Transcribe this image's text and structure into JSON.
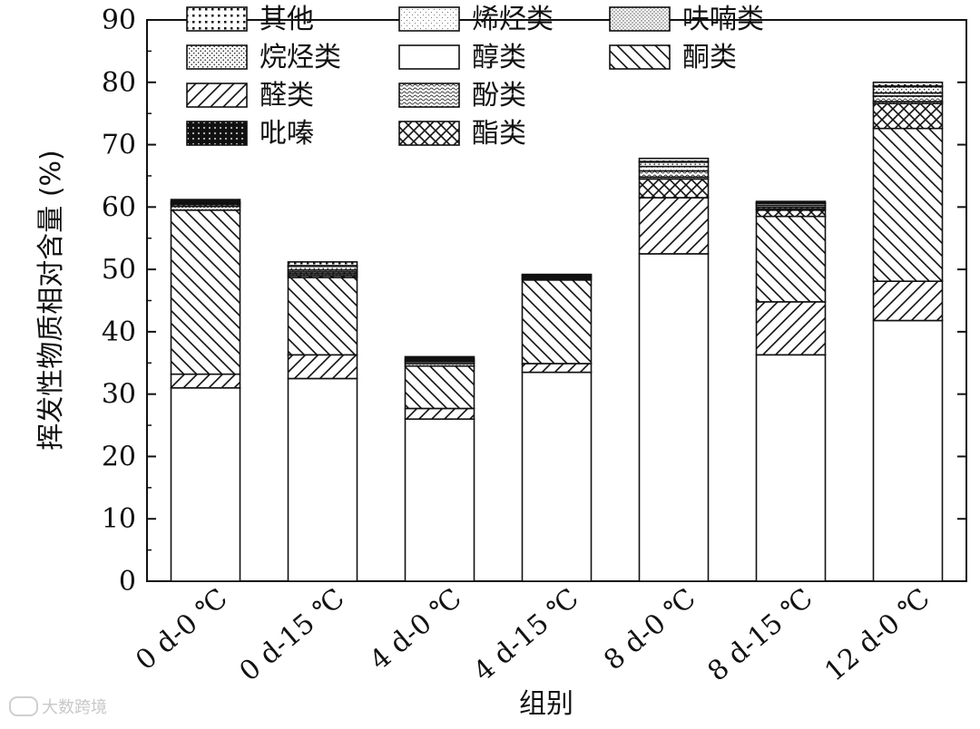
{
  "chart_data": {
    "type": "bar",
    "stacked": true,
    "title": "",
    "xlabel": "组别",
    "ylabel": "挥发性物质相对含量 (%)",
    "ylim": [
      0,
      90
    ],
    "yticks": [
      0,
      10,
      20,
      30,
      40,
      50,
      60,
      70,
      80,
      90
    ],
    "grid": false,
    "legend_position": "top-left",
    "categories": [
      "0 d-0 ℃",
      "0 d-15 ℃",
      "4 d-0 ℃",
      "4 d-15 ℃",
      "8 d-0 ℃",
      "8 d-15 ℃",
      "12 d-0 ℃"
    ],
    "series": [
      {
        "name": "醇类",
        "pattern": "blank",
        "values": [
          31.0,
          32.5,
          26.0,
          33.5,
          52.5,
          36.3,
          41.8
        ]
      },
      {
        "name": "醛类",
        "pattern": "hatch-forward",
        "values": [
          2.2,
          3.8,
          1.7,
          1.4,
          9.0,
          8.5,
          6.3
        ]
      },
      {
        "name": "酮类",
        "pattern": "hatch-back",
        "values": [
          26.3,
          12.4,
          6.8,
          13.4,
          0.0,
          13.7,
          24.5
        ]
      },
      {
        "name": "酯类",
        "pattern": "crosshatch",
        "values": [
          0.0,
          0.3,
          0.0,
          0.0,
          3.0,
          1.0,
          4.0
        ]
      },
      {
        "name": "呋喃类",
        "pattern": "dense-dots",
        "values": [
          0.6,
          0.3,
          0.4,
          0.2,
          0.3,
          0.2,
          0.3
        ]
      },
      {
        "name": "酚类",
        "pattern": "waves",
        "values": [
          0.3,
          0.3,
          0.3,
          0.2,
          1.0,
          0.3,
          0.9
        ]
      },
      {
        "name": "烯烃类",
        "pattern": "fine-dots",
        "values": [
          0.2,
          0.3,
          0.2,
          0.2,
          0.7,
          0.3,
          0.5
        ]
      },
      {
        "name": "烷烃类",
        "pattern": "small-dots",
        "values": [
          0.2,
          0.6,
          0.2,
          0.2,
          0.7,
          0.3,
          1.0
        ]
      },
      {
        "name": "吡嗪",
        "pattern": "dark-dots",
        "values": [
          0.4,
          0.1,
          0.4,
          0.1,
          0.1,
          0.1,
          0.1
        ]
      },
      {
        "name": "其他",
        "pattern": "grid-dots",
        "values": [
          0.0,
          0.6,
          0.0,
          0.0,
          0.5,
          0.2,
          0.6
        ]
      }
    ],
    "legend_order": [
      "其他",
      "烷烃类",
      "醛类",
      "吡嗪",
      "烯烃类",
      "醇类",
      "酚类",
      "酯类",
      "呋喃类",
      "酮类"
    ]
  },
  "watermark": {
    "text": "大数跨境"
  }
}
